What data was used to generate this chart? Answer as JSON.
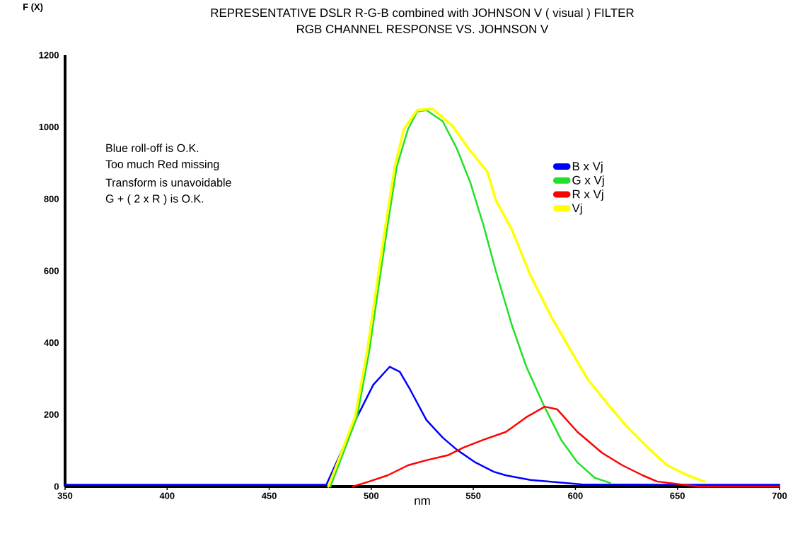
{
  "chart_data": {
    "type": "line",
    "title": "REPRESENTATIVE DSLR R-G-B combined with JOHNSON V ( visual ) FILTER",
    "subtitle": "RGB CHANNEL RESPONSE VS. JOHNSON V",
    "xlabel": "nm",
    "ylabel": "F (X)",
    "xlim": [
      350,
      700
    ],
    "ylim": [
      0,
      1200
    ],
    "xticks": [
      350,
      400,
      450,
      500,
      550,
      600,
      650,
      700
    ],
    "yticks": [
      0,
      200,
      400,
      600,
      800,
      1000,
      1200
    ],
    "grid": false,
    "legend": "top right",
    "marker": "none",
    "line_style": "solid",
    "annotations": [
      "Blue roll-off is O.K.",
      "Too much Red missing",
      "Transform is unavoidable",
      "G + ( 2 x R ) is O.K."
    ],
    "series": [
      {
        "name": "B x Vj",
        "color": "#0000ff",
        "x": [
          350,
          400,
          450,
          478,
          493,
          501,
          509,
          514,
          519,
          527,
          535,
          542,
          551,
          560,
          566,
          578,
          603,
          650,
          700
        ],
        "values": [
          5,
          5,
          5,
          5,
          193,
          283,
          333,
          319,
          270,
          185,
          136,
          102,
          67,
          41,
          31,
          18,
          6,
          5,
          5
        ]
      },
      {
        "name": "G x Vj",
        "color": "#22e02a",
        "x": [
          480,
          493,
          499,
          504,
          508,
          512.5,
          518,
          522.5,
          527,
          535,
          542,
          548.5,
          555,
          561,
          569,
          576,
          585,
          593,
          601,
          609.5,
          617
        ],
        "values": [
          0,
          193,
          376,
          573,
          726,
          890,
          994,
          1043,
          1047,
          1016,
          939,
          846,
          726,
          600,
          447,
          333,
          220,
          130,
          67,
          24,
          10
        ]
      },
      {
        "name": "R x Vj",
        "color": "#ff0000",
        "x": [
          491,
          499,
          508,
          518,
          527,
          537.5,
          545,
          555,
          566,
          576,
          585,
          591,
          601,
          613,
          623,
          633,
          640,
          660,
          700
        ],
        "values": [
          0,
          14,
          31,
          59,
          73,
          87,
          108,
          130,
          152,
          193,
          222,
          215,
          152,
          94,
          59,
          31,
          14,
          0,
          0
        ]
      },
      {
        "name": "Vj",
        "color": "#ffff00",
        "x": [
          479,
          492,
          498,
          503,
          507,
          511.5,
          516,
          522.5,
          530,
          540,
          547,
          557,
          561,
          569,
          578,
          588,
          598,
          606,
          616,
          625.5,
          635.5,
          645,
          655,
          663
        ],
        "values": [
          0,
          193,
          376,
          573,
          726,
          890,
          994,
          1047,
          1051,
          1002,
          945,
          874,
          797,
          713,
          587,
          474,
          376,
          299,
          228,
          165,
          108,
          59,
          31,
          14
        ]
      }
    ]
  }
}
